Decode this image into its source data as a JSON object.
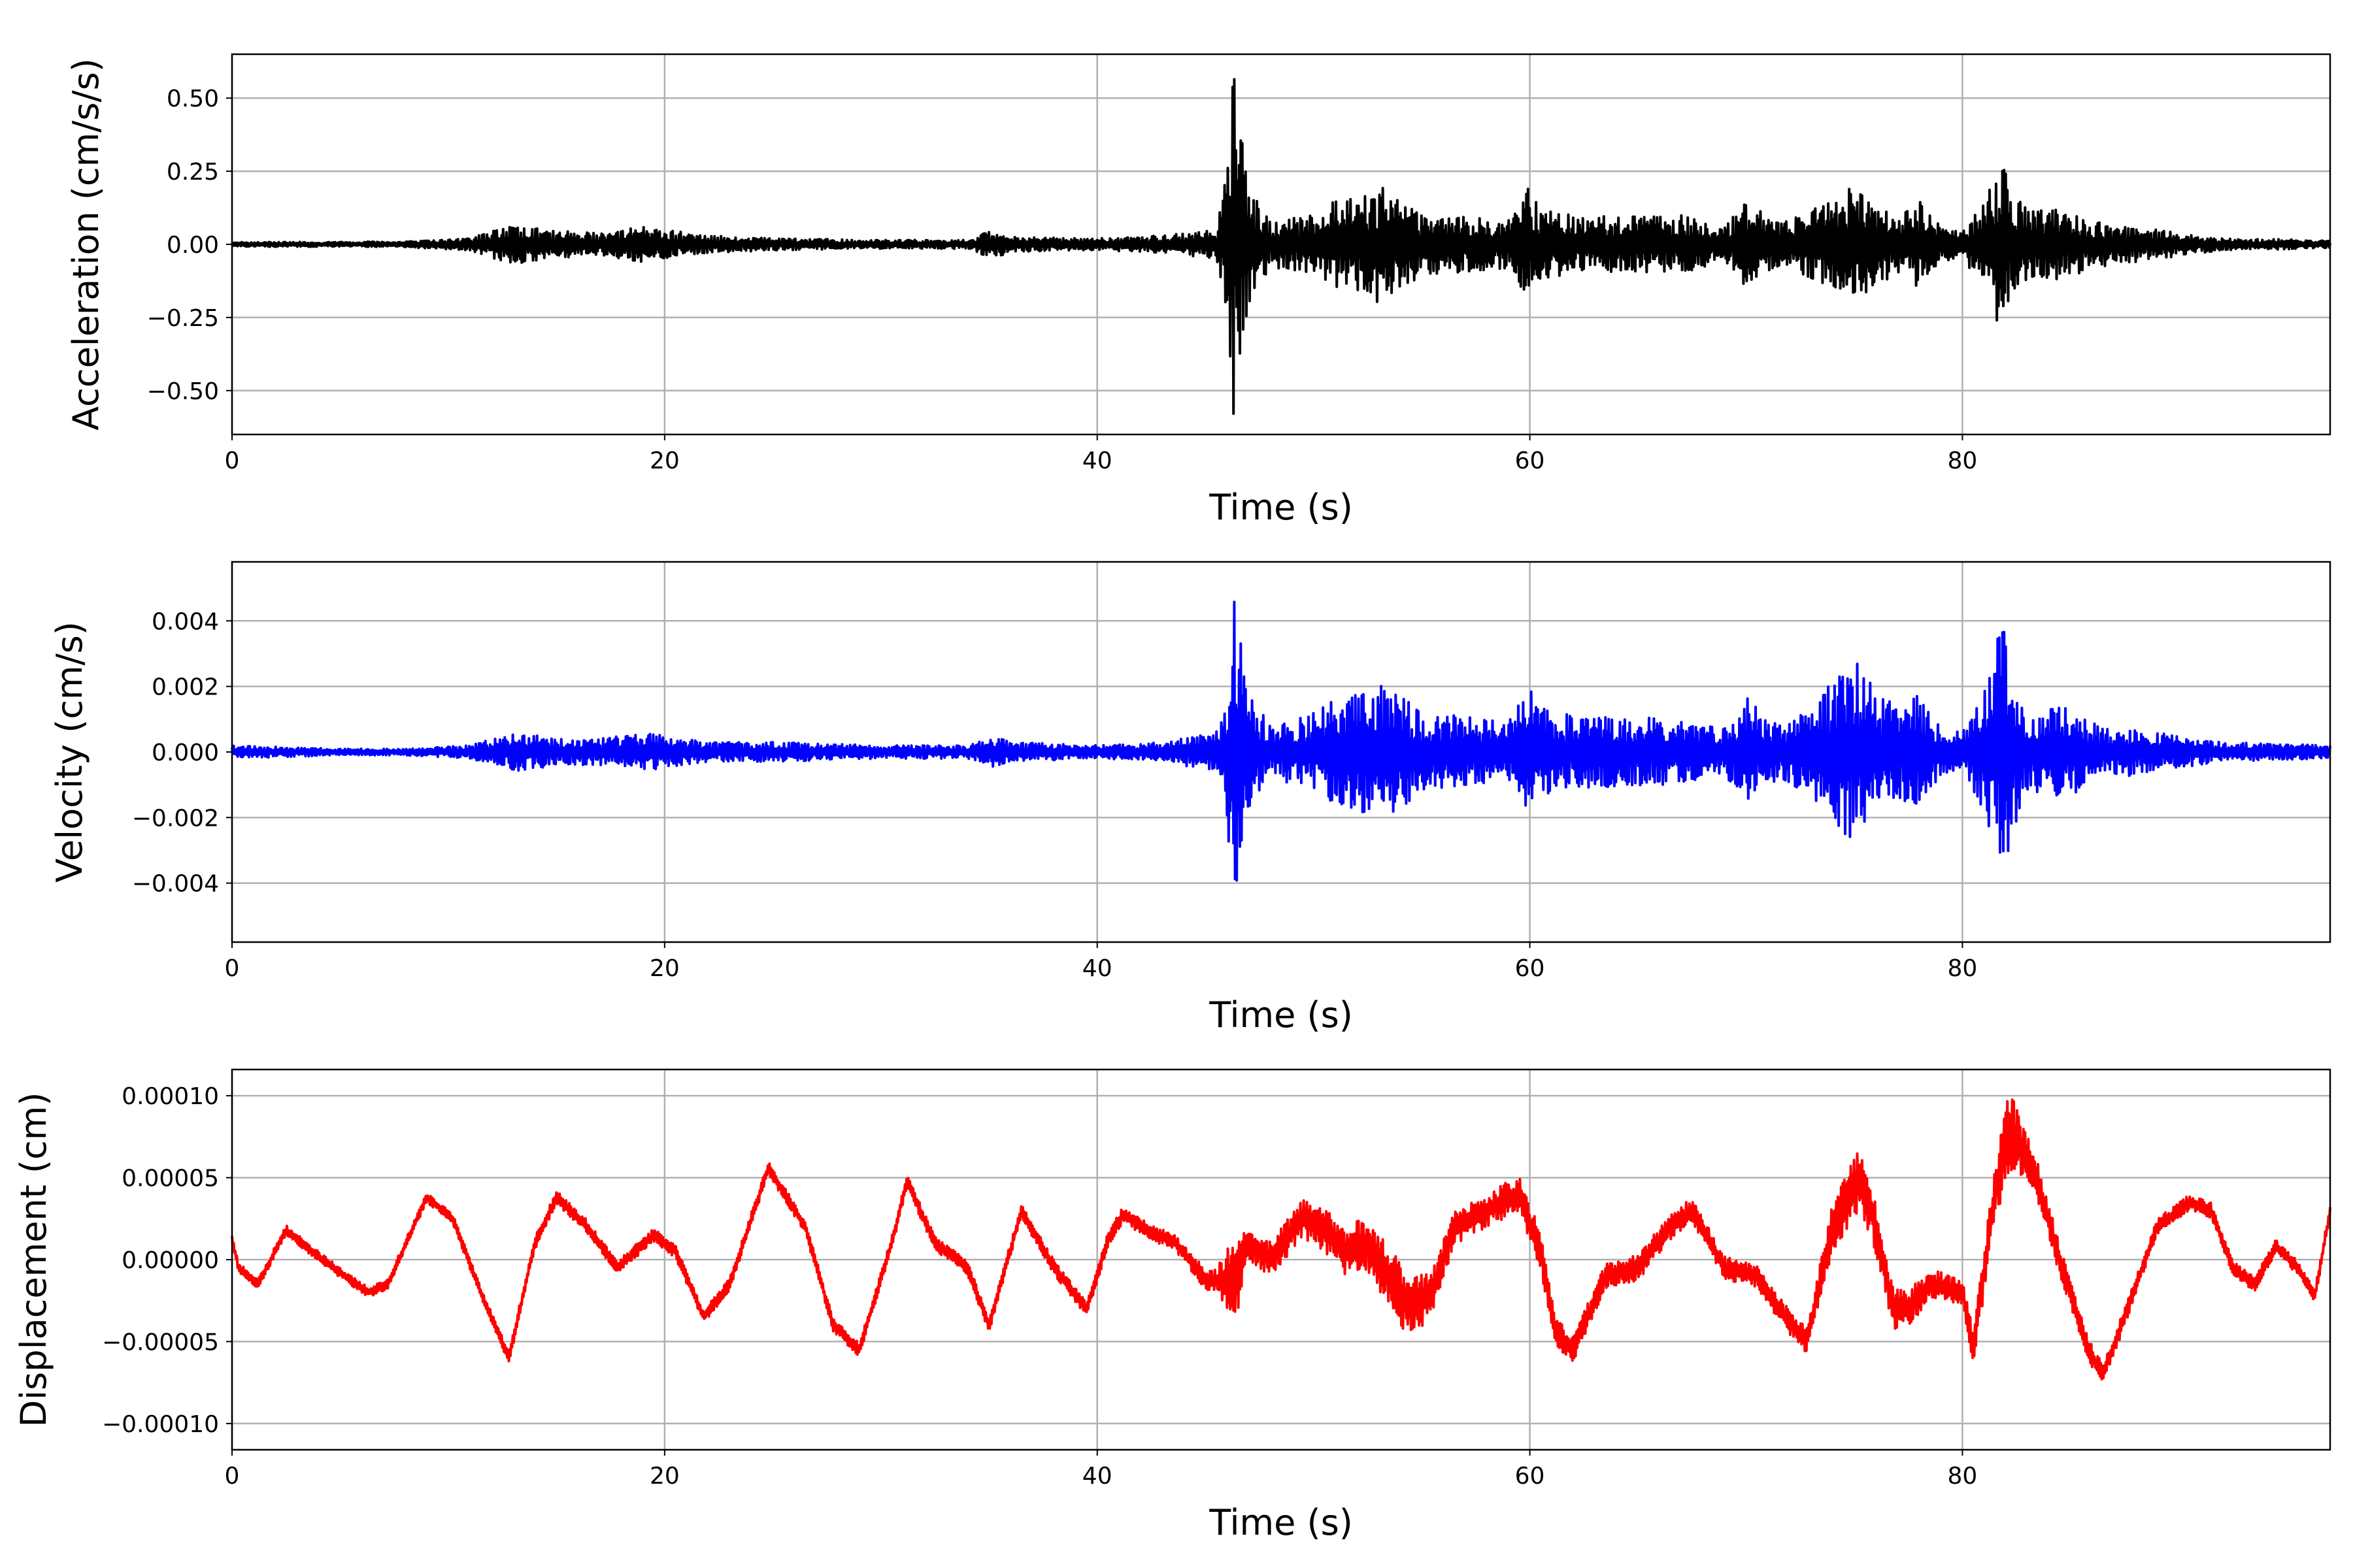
{
  "chart_data": [
    {
      "type": "line",
      "color": "#000000",
      "xlabel": "Time (s)",
      "ylabel": "Acceleration (cm/s/s)",
      "xlim": [
        0,
        97
      ],
      "ylim": [
        -0.65,
        0.65
      ],
      "grid": true,
      "xticks": [
        0,
        20,
        40,
        60,
        80
      ],
      "xtick_labels": [
        "0",
        "20",
        "40",
        "60",
        "80"
      ],
      "yticks": [
        0.5,
        0.25,
        0.0,
        -0.25,
        -0.5
      ],
      "ytick_labels": [
        "0.50",
        "0.25",
        "0.00",
        "−0.25",
        "−0.50"
      ],
      "envelope": [
        [
          0,
          0.008
        ],
        [
          5,
          0.008
        ],
        [
          8,
          0.01
        ],
        [
          11,
          0.02
        ],
        [
          12.5,
          0.06
        ],
        [
          13.5,
          0.065
        ],
        [
          15,
          0.045
        ],
        [
          17,
          0.04
        ],
        [
          19,
          0.06
        ],
        [
          20,
          0.05
        ],
        [
          22,
          0.03
        ],
        [
          25,
          0.02
        ],
        [
          30,
          0.015
        ],
        [
          34,
          0.015
        ],
        [
          35.2,
          0.05
        ],
        [
          36,
          0.025
        ],
        [
          40,
          0.02
        ],
        [
          43,
          0.03
        ],
        [
          45.5,
          0.05
        ],
        [
          46,
          0.25
        ],
        [
          46.3,
          0.58
        ],
        [
          46.6,
          0.45
        ],
        [
          47,
          0.2
        ],
        [
          48,
          0.08
        ],
        [
          50,
          0.1
        ],
        [
          51,
          0.15
        ],
        [
          52,
          0.16
        ],
        [
          53,
          0.2
        ],
        [
          54,
          0.17
        ],
        [
          55,
          0.1
        ],
        [
          57,
          0.1
        ],
        [
          59,
          0.08
        ],
        [
          60,
          0.2
        ],
        [
          60.5,
          0.12
        ],
        [
          62,
          0.1
        ],
        [
          64,
          0.1
        ],
        [
          67,
          0.1
        ],
        [
          69,
          0.06
        ],
        [
          70,
          0.15
        ],
        [
          71,
          0.1
        ],
        [
          72,
          0.08
        ],
        [
          73.5,
          0.15
        ],
        [
          75,
          0.2
        ],
        [
          75.5,
          0.17
        ],
        [
          76,
          0.15
        ],
        [
          77,
          0.1
        ],
        [
          78,
          0.15
        ],
        [
          79,
          0.06
        ],
        [
          80,
          0.05
        ],
        [
          81,
          0.15
        ],
        [
          81.8,
          0.3
        ],
        [
          82.2,
          0.2
        ],
        [
          83,
          0.12
        ],
        [
          85,
          0.12
        ],
        [
          86,
          0.08
        ],
        [
          88,
          0.06
        ],
        [
          90,
          0.04
        ],
        [
          92,
          0.02
        ],
        [
          97,
          0.015
        ]
      ]
    },
    {
      "type": "line",
      "color": "#0000ff",
      "xlabel": "Time (s)",
      "ylabel": "Velocity (cm/s)",
      "xlim": [
        0,
        97
      ],
      "ylim": [
        -0.0058,
        0.0058
      ],
      "grid": true,
      "xticks": [
        0,
        20,
        40,
        60,
        80
      ],
      "xtick_labels": [
        "0",
        "20",
        "40",
        "60",
        "80"
      ],
      "yticks": [
        0.004,
        0.002,
        0.0,
        -0.002,
        -0.004
      ],
      "ytick_labels": [
        "0.004",
        "0.002",
        "0.000",
        "−0.002",
        "−0.004"
      ],
      "envelope": [
        [
          0,
          0.0002
        ],
        [
          5,
          0.0001
        ],
        [
          8,
          0.0001
        ],
        [
          11,
          0.0002
        ],
        [
          12.5,
          0.0005
        ],
        [
          13.5,
          0.0006
        ],
        [
          15,
          0.0004
        ],
        [
          17,
          0.0004
        ],
        [
          19,
          0.0006
        ],
        [
          20,
          0.0005
        ],
        [
          22,
          0.0003
        ],
        [
          25,
          0.0003
        ],
        [
          30,
          0.0002
        ],
        [
          34,
          0.0002
        ],
        [
          35.2,
          0.0005
        ],
        [
          36,
          0.0003
        ],
        [
          40,
          0.0002
        ],
        [
          43,
          0.0003
        ],
        [
          45.5,
          0.0006
        ],
        [
          46,
          0.002
        ],
        [
          46.3,
          0.0052
        ],
        [
          46.6,
          0.004
        ],
        [
          47,
          0.0018
        ],
        [
          48,
          0.0008
        ],
        [
          50,
          0.0012
        ],
        [
          51,
          0.0016
        ],
        [
          52,
          0.0018
        ],
        [
          53,
          0.0022
        ],
        [
          54,
          0.0018
        ],
        [
          55,
          0.0012
        ],
        [
          57,
          0.0011
        ],
        [
          59,
          0.0009
        ],
        [
          60,
          0.0022
        ],
        [
          60.5,
          0.0014
        ],
        [
          62,
          0.0011
        ],
        [
          64,
          0.0011
        ],
        [
          67,
          0.001
        ],
        [
          69,
          0.0007
        ],
        [
          70,
          0.0017
        ],
        [
          71,
          0.0011
        ],
        [
          72,
          0.0009
        ],
        [
          73.5,
          0.0018
        ],
        [
          75,
          0.0028
        ],
        [
          75.5,
          0.0024
        ],
        [
          76,
          0.0018
        ],
        [
          77,
          0.0014
        ],
        [
          78,
          0.0018
        ],
        [
          79,
          0.0007
        ],
        [
          80,
          0.0006
        ],
        [
          81,
          0.0018
        ],
        [
          81.8,
          0.0041
        ],
        [
          82.2,
          0.0028
        ],
        [
          83,
          0.0012
        ],
        [
          85,
          0.0014
        ],
        [
          86,
          0.0009
        ],
        [
          88,
          0.0007
        ],
        [
          90,
          0.0005
        ],
        [
          92,
          0.0003
        ],
        [
          97,
          0.0002
        ]
      ]
    },
    {
      "type": "line",
      "color": "#ff0000",
      "xlabel": "Time (s)",
      "ylabel": "Displacement (cm)",
      "xlim": [
        0,
        97
      ],
      "ylim": [
        -0.000116,
        0.000116
      ],
      "grid": true,
      "xticks": [
        0,
        20,
        40,
        60,
        80
      ],
      "xtick_labels": [
        "0",
        "20",
        "40",
        "60",
        "80"
      ],
      "yticks": [
        0.0001,
        5e-05,
        0.0,
        -5e-05,
        -0.0001
      ],
      "ytick_labels": [
        "0.00010",
        "0.00005",
        "0.00000",
        "−0.00005",
        "−0.00010"
      ],
      "x": [
        0,
        0.3,
        1.2,
        2.5,
        4,
        5,
        6.3,
        7.2,
        9,
        10.2,
        11.5,
        12.8,
        14,
        15,
        16.3,
        17.8,
        19.5,
        20.5,
        21.8,
        23,
        24.8,
        26.5,
        27.8,
        29,
        30.5,
        31.2,
        32.5,
        34,
        35,
        36.5,
        38,
        39.5,
        40.5,
        41.2,
        42.5,
        43.5,
        45,
        46.3,
        47,
        48,
        49.5,
        50.5,
        51.5,
        52.5,
        54.5,
        55.5,
        56.5,
        58,
        59.5,
        60.5,
        61.2,
        62,
        63.5,
        65,
        66.5,
        67.5,
        69,
        70.5,
        71.8,
        72.8,
        74,
        75.2,
        75.8,
        76.8,
        77.5,
        78.5,
        80,
        80.5,
        81.5,
        82.2,
        83.3,
        84.5,
        85.8,
        86.5,
        87.5,
        89,
        90.5,
        91.5,
        92.5,
        93.5,
        94.5,
        95.5,
        96.3,
        97
      ],
      "y": [
        1.2e-05,
        -5e-06,
        -1.5e-05,
        1.8e-05,
        2e-06,
        -8e-06,
        -2e-05,
        -1.5e-05,
        3.8e-05,
        2.5e-05,
        -2e-05,
        -6e-05,
        1e-05,
        3.8e-05,
        2.2e-05,
        -5e-06,
        1.5e-05,
        5e-06,
        -3.5e-05,
        -1.5e-05,
        5.6e-05,
        2e-05,
        -4e-05,
        -5.5e-05,
        1e-05,
        4.8e-05,
        1e-05,
        -5e-06,
        -4e-05,
        3e-05,
        -5e-06,
        -3e-05,
        1.2e-05,
        2.8e-05,
        1.6e-05,
        1.2e-05,
        -1.2e-05,
        -1.5e-05,
        1e-05,
        0.0,
        2.5e-05,
        1.8e-05,
        5e-06,
        1e-05,
        -3e-05,
        -2e-05,
        2e-05,
        3e-05,
        4e-05,
        5e-06,
        -4.5e-05,
        -5.5e-05,
        -1e-05,
        -5e-06,
        2e-05,
        3e-05,
        -5e-06,
        -1e-05,
        -3.5e-05,
        -5e-05,
        2e-05,
        5e-05,
        3e-05,
        -3e-05,
        -3e-05,
        -1.5e-05,
        -2e-05,
        -5.5e-05,
        4e-05,
        8e-05,
        5.5e-05,
        0.0,
        -5.5e-05,
        -7e-05,
        -3.5e-05,
        2e-05,
        3.5e-05,
        3e-05,
        -5e-06,
        -1.5e-05,
        8e-06,
        -5e-06,
        -2.2e-05,
        3e-05
      ],
      "noise_envelope": [
        [
          0,
          3e-06
        ],
        [
          10,
          3e-06
        ],
        [
          14,
          4e-06
        ],
        [
          24,
          4e-06
        ],
        [
          30,
          4e-06
        ],
        [
          44,
          5e-06
        ],
        [
          45.5,
          7e-06
        ],
        [
          46.3,
          3e-05
        ],
        [
          47,
          1e-05
        ],
        [
          50,
          1.2e-05
        ],
        [
          52,
          1.6e-05
        ],
        [
          54,
          2e-05
        ],
        [
          56,
          1.2e-05
        ],
        [
          58,
          1e-05
        ],
        [
          60,
          1.2e-05
        ],
        [
          62,
          8e-06
        ],
        [
          67,
          8e-06
        ],
        [
          70,
          7e-06
        ],
        [
          73,
          8e-06
        ],
        [
          75,
          2.2e-05
        ],
        [
          76,
          1.5e-05
        ],
        [
          78,
          1e-05
        ],
        [
          80,
          8e-06
        ],
        [
          81.5,
          1.8e-05
        ],
        [
          82.2,
          2.5e-05
        ],
        [
          83,
          1.4e-05
        ],
        [
          85,
          8e-06
        ],
        [
          88,
          5e-06
        ],
        [
          97,
          4e-06
        ]
      ]
    }
  ]
}
